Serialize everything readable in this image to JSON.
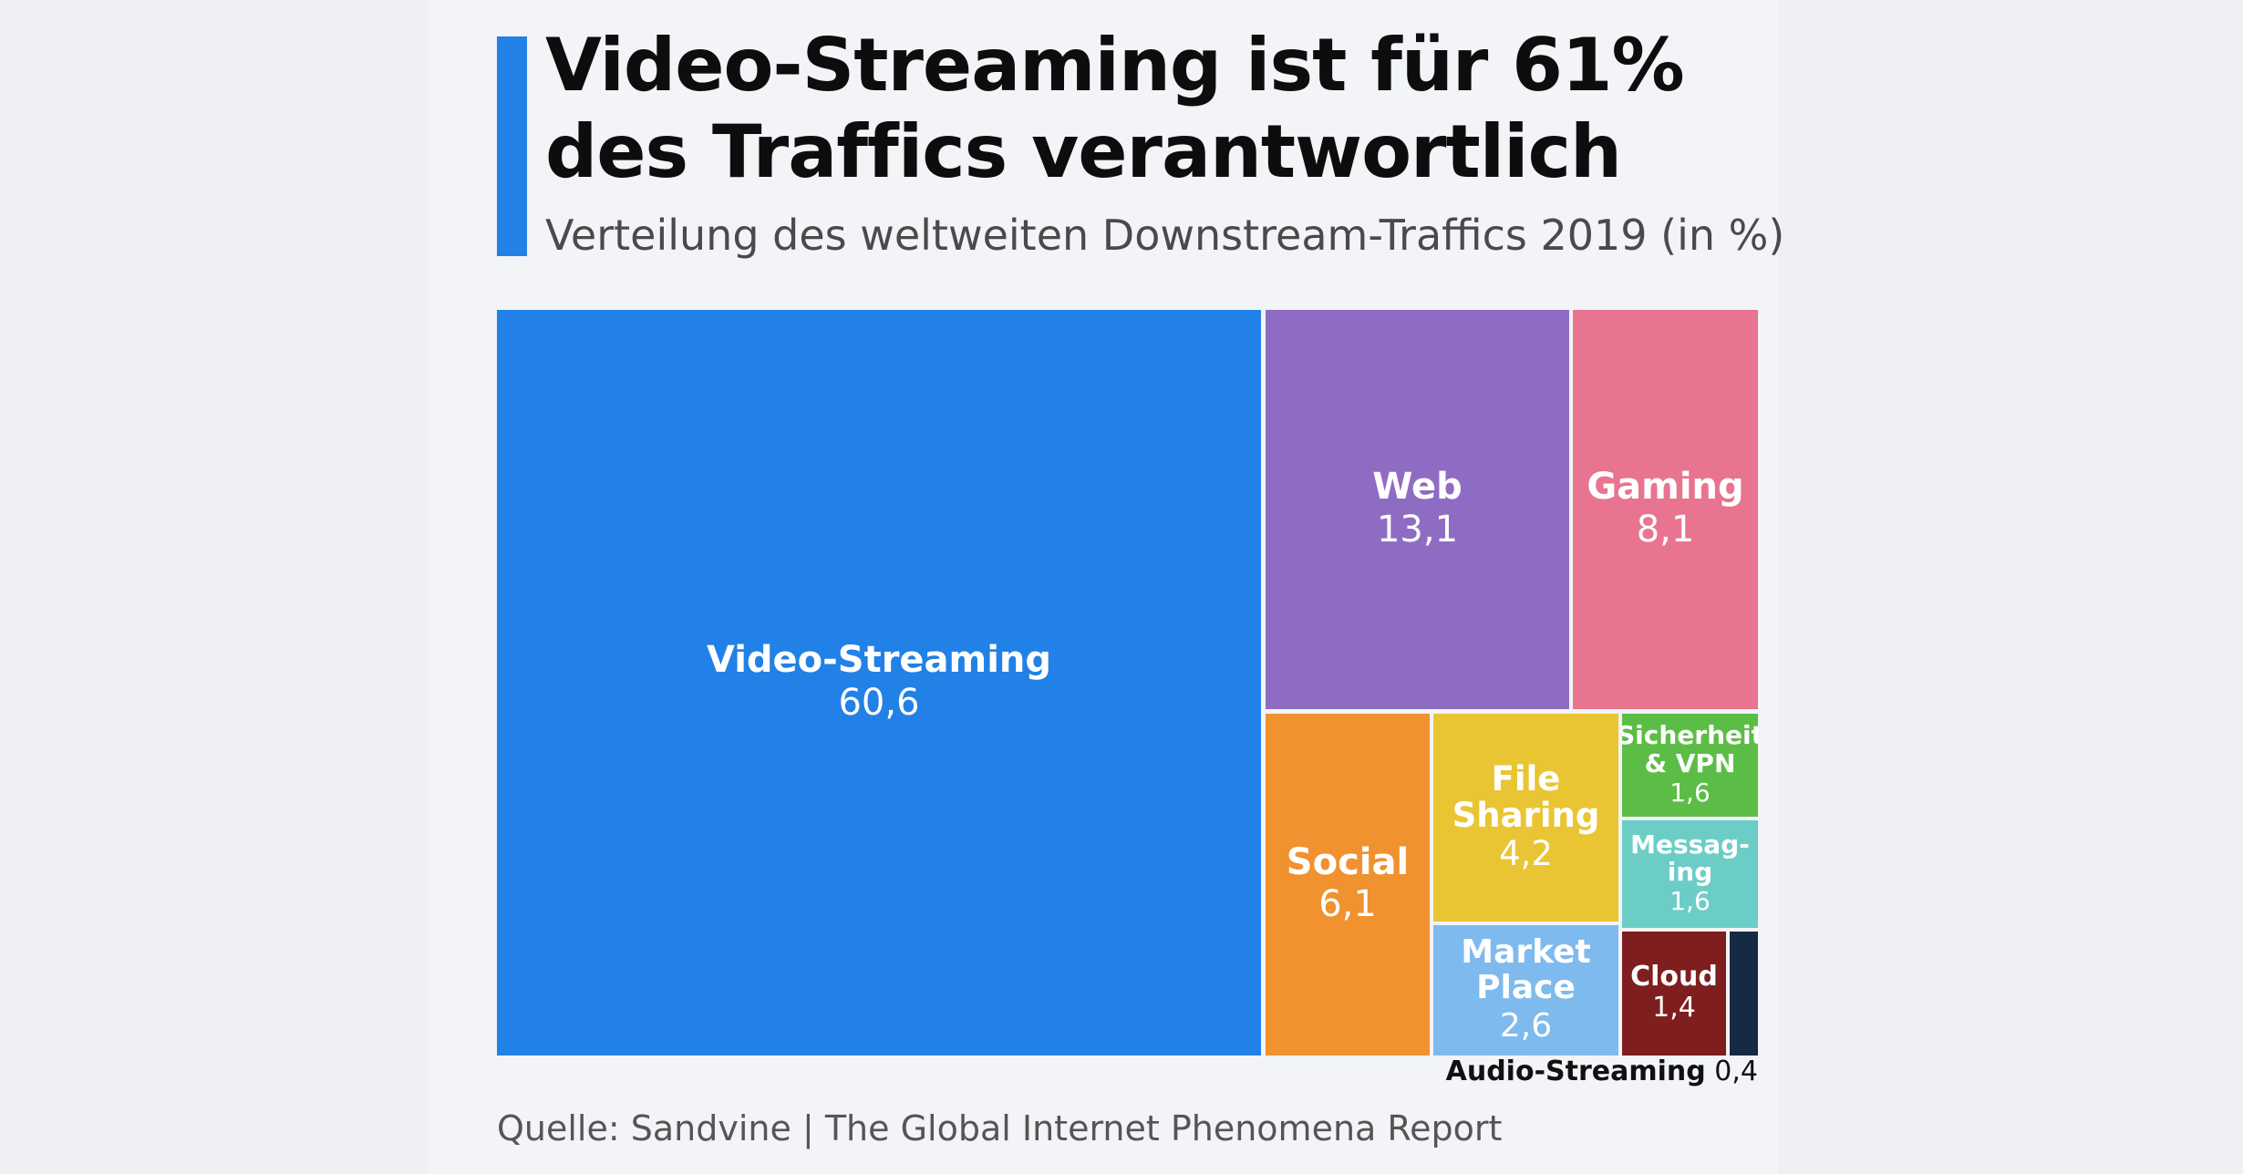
{
  "header": {
    "title_line1": "Video-Streaming ist für 61%",
    "title_line2": "des Traffics verantwortlich",
    "subtitle": "Verteilung des weltweiten Downstream-Traffics 2019 (in %)"
  },
  "footer": {
    "source": "Quelle: Sandvine | The Global Internet Phenomena Report"
  },
  "chart_data": {
    "type": "treemap",
    "title": "Video-Streaming ist für 61% des Traffics verantwortlich",
    "subtitle": "Verteilung des weltweiten Downstream-Traffics 2019 (in %)",
    "items": [
      {
        "label": "Video-Streaming",
        "value": 60.6,
        "display": "60,6",
        "color": "#2181e6"
      },
      {
        "label": "Web",
        "value": 13.1,
        "display": "13,1",
        "color": "#8f6cc4"
      },
      {
        "label": "Gaming",
        "value": 8.1,
        "display": "8,1",
        "color": "#e87490"
      },
      {
        "label": "Social",
        "value": 6.1,
        "display": "6,1",
        "color": "#f0922f"
      },
      {
        "label": "File Sharing",
        "value": 4.2,
        "display": "4,2",
        "color": "#eac533"
      },
      {
        "label": "Market Place",
        "value": 2.6,
        "display": "2,6",
        "color": "#7ebaee"
      },
      {
        "label": "Sicherheit & VPN",
        "value": 1.6,
        "display": "1,6",
        "color": "#5cbd46"
      },
      {
        "label": "Messag-ing",
        "value": 1.6,
        "display": "1,6",
        "color": "#6ccdc7"
      },
      {
        "label": "Cloud",
        "value": 1.4,
        "display": "1,4",
        "color": "#7e1e1e"
      },
      {
        "label": "Audio-Streaming",
        "value": 0.4,
        "display": "0,4",
        "color": "#152a45"
      }
    ]
  }
}
